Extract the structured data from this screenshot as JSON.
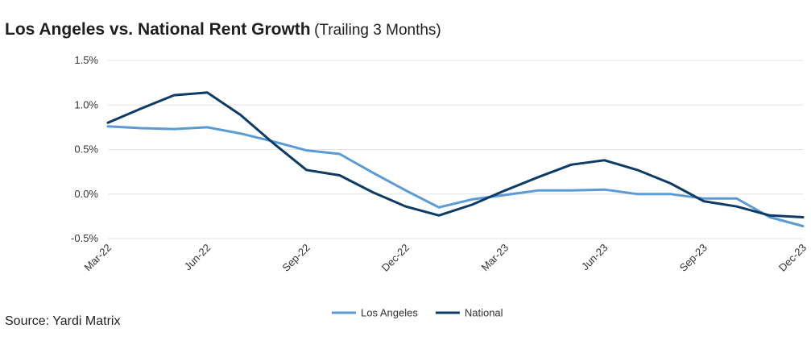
{
  "header": {
    "title": "Los Angeles vs. National Rent Growth",
    "subtitle": "(Trailing 3 Months)"
  },
  "footer": {
    "source": "Source: Yardi Matrix"
  },
  "chart_data": {
    "type": "line",
    "title": "Los Angeles vs. National Rent Growth",
    "subtitle": "(Trailing 3 Months)",
    "xlabel": "",
    "ylabel": "",
    "x": [
      "Mar-22",
      "Apr-22",
      "May-22",
      "Jun-22",
      "Jul-22",
      "Aug-22",
      "Sep-22",
      "Oct-22",
      "Nov-22",
      "Dec-22",
      "Jan-23",
      "Feb-23",
      "Mar-23",
      "Apr-23",
      "May-23",
      "Jun-23",
      "Jul-23",
      "Aug-23",
      "Sep-23",
      "Oct-23",
      "Nov-23",
      "Dec-23"
    ],
    "x_tick_labels": [
      "Mar-22",
      "Jun-22",
      "Sep-22",
      "Dec-22",
      "Mar-23",
      "Jun-23",
      "Sep-23",
      "Dec-23"
    ],
    "y_tick_labels": [
      "1.5%",
      "1.0%",
      "0.5%",
      "0.0%",
      "-0.5%"
    ],
    "y_ticks": [
      1.5,
      1.0,
      0.5,
      0.0,
      -0.5
    ],
    "ylim": [
      -0.5,
      1.5
    ],
    "grid": true,
    "legend_position": "bottom-center",
    "series": [
      {
        "name": "Los Angeles",
        "color": "#5b9bd5",
        "values": [
          0.76,
          0.74,
          0.73,
          0.75,
          0.68,
          0.59,
          0.49,
          0.45,
          0.24,
          0.04,
          -0.15,
          -0.06,
          -0.01,
          0.04,
          0.04,
          0.05,
          0.0,
          0.0,
          -0.05,
          -0.05,
          -0.26,
          -0.36
        ]
      },
      {
        "name": "National",
        "color": "#0d3b66",
        "values": [
          0.8,
          0.96,
          1.11,
          1.14,
          0.89,
          0.57,
          0.27,
          0.21,
          0.02,
          -0.14,
          -0.24,
          -0.12,
          0.04,
          0.19,
          0.33,
          0.38,
          0.27,
          0.12,
          -0.08,
          -0.14,
          -0.24,
          -0.26
        ]
      }
    ]
  }
}
